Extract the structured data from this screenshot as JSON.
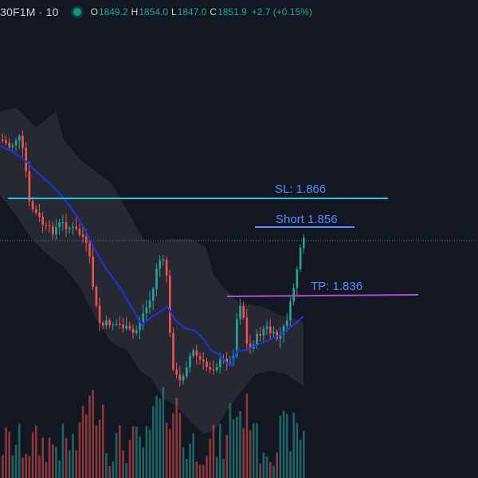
{
  "legend": {
    "symbol": "30F1M · 10",
    "open_key": "O",
    "open": "1849.2",
    "high_key": "H",
    "high": "1854.0",
    "low_key": "L",
    "low": "1847.0",
    "close_key": "C",
    "close": "1851.9",
    "change": "+2.7 (+0.15%)",
    "status_color": "#089981"
  },
  "annotations": {
    "sl_label": "SL: 1.866",
    "short_label": "Short 1.856",
    "tp_label": "TP: 1.836"
  },
  "colors": {
    "background": "#131722",
    "up": "#26a69a",
    "down": "#ef5350",
    "ma_line": "#2233dd",
    "band_fill": "#2a2d37",
    "sl_line": "#26c6da",
    "tp_line": "#b04fd1",
    "short_line": "#5b8cff",
    "label_text": "#5b8cff"
  },
  "chart_data": {
    "type": "candlestick",
    "price_levels": {
      "stop_loss": 1.866,
      "short_entry": 1.856,
      "take_profit": 1.836
    },
    "overlays": [
      "moving-average",
      "bollinger-band"
    ],
    "volume_panel": true,
    "grid": false
  }
}
